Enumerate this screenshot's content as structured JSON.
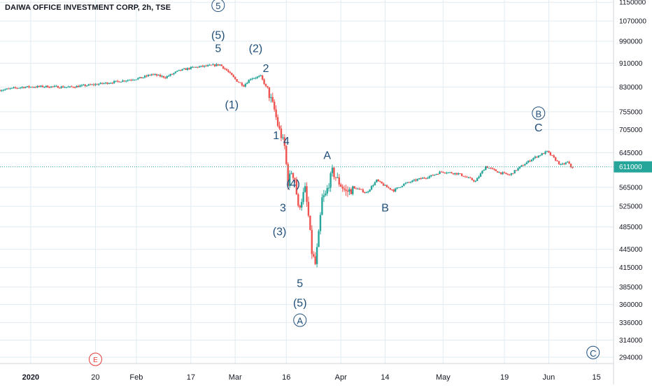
{
  "header": {
    "title": "DAIWA OFFICE INVESTMENT CORP, 2h, TSE"
  },
  "colors": {
    "up": "#26a69a",
    "down": "#ef5350",
    "wave": "#1f4e79",
    "grid": "#e1ecf2",
    "last_price_line": "#2ba3a0",
    "marker_e": "#e53935"
  },
  "chart_data": {
    "type": "candlestick",
    "title": "DAIWA OFFICE INVESTMENT CORP, 2h, TSE",
    "y_scale": "log",
    "ylim": [
      287000,
      1160000
    ],
    "y_ticks": [
      "1150000",
      "1070000",
      "990000",
      "910000",
      "830000",
      "755000",
      "705000",
      "645000",
      "611000",
      "565000",
      "525000",
      "485000",
      "445000",
      "415000",
      "385000",
      "360000",
      "336000",
      "314000",
      "294000"
    ],
    "last_price": "611000",
    "x_ticks": [
      "2020",
      "20",
      "Feb",
      "17",
      "Mar",
      "16",
      "Apr",
      "14",
      "May",
      "19",
      "Jun",
      "15"
    ],
    "x_range": [
      "2019-12-23",
      "2020-06-20"
    ],
    "price_path": [
      [
        "2019-12-23",
        820000
      ],
      [
        "2019-12-30",
        830000
      ],
      [
        "2020-01-06",
        832000
      ],
      [
        "2020-01-13",
        830000
      ],
      [
        "2020-01-20",
        838000
      ],
      [
        "2020-01-27",
        848000
      ],
      [
        "2020-02-03",
        860000
      ],
      [
        "2020-02-06",
        872000
      ],
      [
        "2020-02-10",
        862000
      ],
      [
        "2020-02-14",
        884000
      ],
      [
        "2020-02-18",
        895000
      ],
      [
        "2020-02-22",
        900000
      ],
      [
        "2020-02-26",
        905000
      ],
      [
        "2020-02-28",
        885000
      ],
      [
        "2020-03-02",
        850000
      ],
      [
        "2020-03-04",
        835000
      ],
      [
        "2020-03-06",
        858000
      ],
      [
        "2020-03-09",
        865000
      ],
      [
        "2020-03-11",
        820000
      ],
      [
        "2020-03-12",
        790000
      ],
      [
        "2020-03-13",
        760000
      ],
      [
        "2020-03-14",
        718000
      ],
      [
        "2020-03-16",
        660000
      ],
      [
        "2020-03-17",
        575000
      ],
      [
        "2020-03-18",
        600000
      ],
      [
        "2020-03-19",
        585000
      ],
      [
        "2020-03-20",
        520000
      ],
      [
        "2020-03-22",
        560000
      ],
      [
        "2020-03-23",
        505000
      ],
      [
        "2020-03-24",
        440000
      ],
      [
        "2020-03-25",
        420000
      ],
      [
        "2020-03-26",
        470000
      ],
      [
        "2020-03-27",
        540000
      ],
      [
        "2020-03-28",
        548000
      ],
      [
        "2020-03-30",
        600000
      ],
      [
        "2020-04-01",
        575000
      ],
      [
        "2020-04-03",
        555000
      ],
      [
        "2020-04-06",
        563000
      ],
      [
        "2020-04-09",
        553000
      ],
      [
        "2020-04-12",
        580000
      ],
      [
        "2020-04-15",
        565000
      ],
      [
        "2020-04-17",
        558000
      ],
      [
        "2020-04-20",
        572000
      ],
      [
        "2020-04-24",
        582000
      ],
      [
        "2020-04-28",
        590000
      ],
      [
        "2020-05-01",
        600000
      ],
      [
        "2020-05-06",
        595000
      ],
      [
        "2020-05-11",
        578000
      ],
      [
        "2020-05-14",
        612000
      ],
      [
        "2020-05-18",
        598000
      ],
      [
        "2020-05-21",
        592000
      ],
      [
        "2020-05-24",
        610000
      ],
      [
        "2020-05-28",
        632000
      ],
      [
        "2020-06-01",
        648000
      ],
      [
        "2020-06-03",
        632000
      ],
      [
        "2020-06-05",
        615000
      ],
      [
        "2020-06-07",
        622000
      ],
      [
        "2020-06-08",
        611000
      ]
    ]
  },
  "wave_labels": [
    {
      "text": "5",
      "circled": true,
      "date": "2020-02-25",
      "price": 1120000,
      "size": 16
    },
    {
      "text": "(5)",
      "circled": false,
      "date": "2020-02-25",
      "price": 1000000,
      "size": 16
    },
    {
      "text": "5",
      "circled": false,
      "date": "2020-02-25",
      "price": 950000,
      "size": 16
    },
    {
      "text": "(2)",
      "circled": false,
      "date": "2020-03-07",
      "price": 950000,
      "size": 16
    },
    {
      "text": "2",
      "circled": false,
      "date": "2020-03-10",
      "price": 880000,
      "size": 16
    },
    {
      "text": "(1)",
      "circled": false,
      "date": "2020-02-29",
      "price": 765000,
      "size": 16
    },
    {
      "text": "1",
      "circled": false,
      "date": "2020-03-13",
      "price": 680000,
      "size": 16
    },
    {
      "text": "4",
      "circled": false,
      "date": "2020-03-16",
      "price": 665000,
      "size": 16
    },
    {
      "text": "A",
      "circled": false,
      "date": "2020-03-28",
      "price": 630000,
      "size": 16
    },
    {
      "text": "(4)",
      "circled": false,
      "date": "2020-03-18",
      "price": 565000,
      "size": 16
    },
    {
      "text": "3",
      "circled": false,
      "date": "2020-03-15",
      "price": 515000,
      "size": 16
    },
    {
      "text": "(3)",
      "circled": false,
      "date": "2020-03-14",
      "price": 470000,
      "size": 16
    },
    {
      "text": "B",
      "circled": false,
      "date": "2020-04-14",
      "price": 515000,
      "size": 16
    },
    {
      "text": "5",
      "circled": false,
      "date": "2020-03-20",
      "price": 385000,
      "size": 16
    },
    {
      "text": "(5)",
      "circled": false,
      "date": "2020-03-20",
      "price": 357000,
      "size": 16
    },
    {
      "text": "A",
      "circled": true,
      "date": "2020-03-20",
      "price": 334000,
      "size": 16
    },
    {
      "text": "B",
      "circled": true,
      "date": "2020-05-29",
      "price": 740000,
      "size": 16
    },
    {
      "text": "C",
      "circled": false,
      "date": "2020-05-29",
      "price": 700000,
      "size": 16
    },
    {
      "text": "C",
      "circled": true,
      "date": "2020-06-14",
      "price": 295000,
      "size": 16
    }
  ],
  "event_marker": {
    "text": "E",
    "date": "2020-01-20"
  }
}
